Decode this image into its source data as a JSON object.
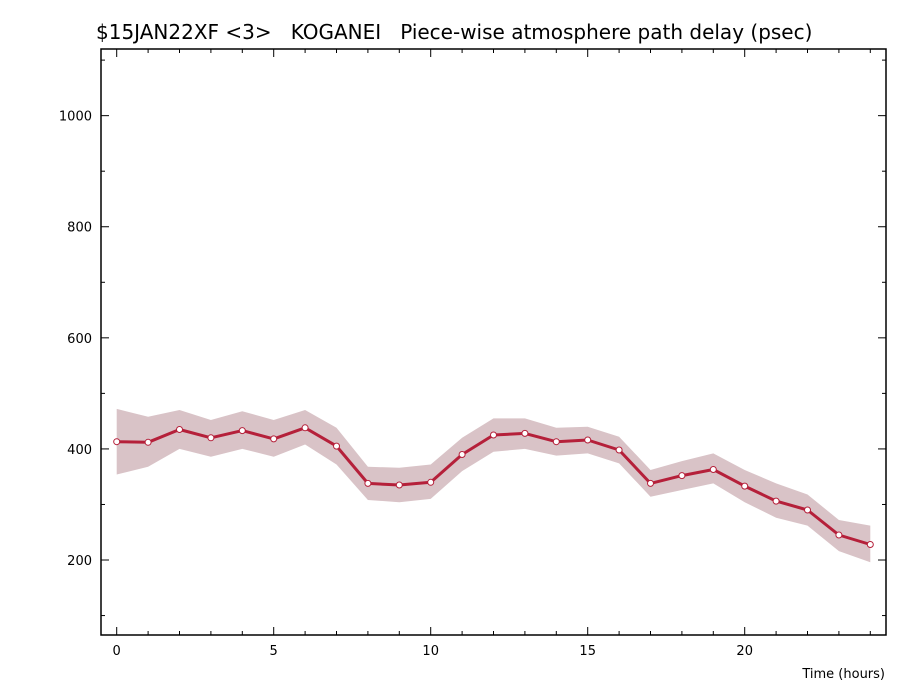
{
  "chart_data": {
    "type": "line",
    "title": "$15JAN22XF <3>   KOGANEI   Piece-wise atmosphere path delay (psec)",
    "xlabel": "Time (hours)",
    "ylabel": "",
    "xlim": [
      -0.5,
      24.5
    ],
    "ylim": [
      65,
      1120
    ],
    "x_ticks": [
      0,
      5,
      10,
      15,
      20
    ],
    "y_ticks": [
      200,
      400,
      600,
      800,
      1000
    ],
    "grid": false,
    "colors": {
      "line": "#b5203a",
      "band": "#d9c3c7",
      "marker_fill": "#ffffff",
      "axis": "#000000"
    },
    "series": [
      {
        "x": [
          0,
          1,
          2,
          3,
          4,
          5,
          6,
          7,
          8,
          9,
          10,
          11,
          12,
          13,
          14,
          15,
          16,
          17,
          18,
          19,
          20,
          21,
          22,
          23,
          24
        ],
        "values": [
          413,
          412,
          435,
          420,
          433,
          418,
          438,
          405,
          338,
          335,
          340,
          390,
          425,
          428,
          413,
          416,
          398,
          338,
          352,
          363,
          333,
          306,
          290,
          245,
          228
        ],
        "band_upper": [
          472,
          458,
          470,
          452,
          468,
          452,
          470,
          438,
          368,
          366,
          372,
          420,
          455,
          455,
          438,
          440,
          422,
          362,
          378,
          392,
          362,
          338,
          318,
          272,
          262
        ],
        "band_lower": [
          354,
          368,
          400,
          386,
          400,
          386,
          408,
          372,
          308,
          304,
          310,
          360,
          395,
          400,
          388,
          392,
          374,
          314,
          326,
          338,
          304,
          276,
          262,
          216,
          196
        ]
      }
    ]
  }
}
